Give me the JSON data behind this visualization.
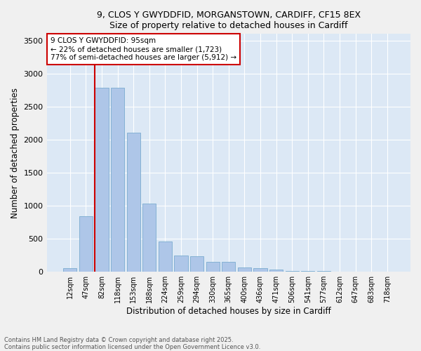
{
  "title_line1": "9, CLOS Y GWYDDFID, MORGANSTOWN, CARDIFF, CF15 8EX",
  "title_line2": "Size of property relative to detached houses in Cardiff",
  "xlabel": "Distribution of detached houses by size in Cardiff",
  "ylabel": "Number of detached properties",
  "categories": [
    "12sqm",
    "47sqm",
    "82sqm",
    "118sqm",
    "153sqm",
    "188sqm",
    "224sqm",
    "259sqm",
    "294sqm",
    "330sqm",
    "365sqm",
    "400sqm",
    "436sqm",
    "471sqm",
    "506sqm",
    "541sqm",
    "577sqm",
    "612sqm",
    "647sqm",
    "683sqm",
    "718sqm"
  ],
  "values": [
    55,
    840,
    2780,
    2780,
    2100,
    1030,
    460,
    245,
    240,
    150,
    150,
    65,
    55,
    35,
    15,
    10,
    10,
    5,
    5,
    5,
    5
  ],
  "bar_color": "#aec6e8",
  "bar_edge_color": "#7aacd0",
  "property_line_color": "#cc0000",
  "annotation_text": "9 CLOS Y GWYDDFID: 95sqm\n← 22% of detached houses are smaller (1,723)\n77% of semi-detached houses are larger (5,912) →",
  "annotation_box_edge_color": "#cc0000",
  "ylim": [
    0,
    3600
  ],
  "yticks": [
    0,
    500,
    1000,
    1500,
    2000,
    2500,
    3000,
    3500
  ],
  "plot_bg_color": "#dce8f5",
  "fig_bg_color": "#f0f0f0",
  "grid_color": "#ffffff",
  "footer_line1": "Contains HM Land Registry data © Crown copyright and database right 2025.",
  "footer_line2": "Contains public sector information licensed under the Open Government Licence v3.0."
}
